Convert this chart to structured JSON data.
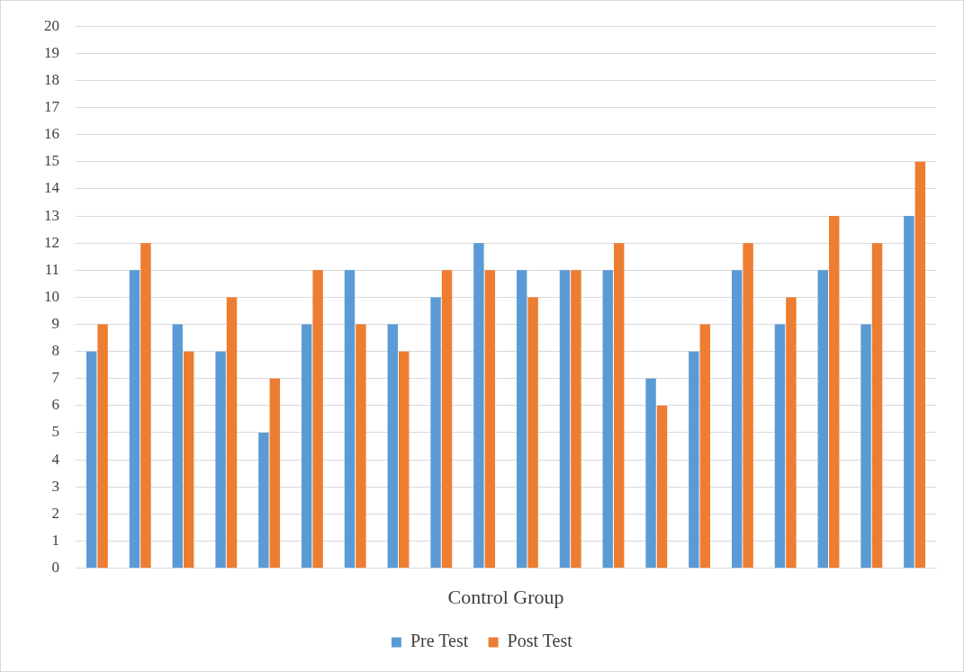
{
  "chart_data": {
    "type": "bar",
    "xlabel": "Control Group",
    "categories": [
      null,
      null,
      null,
      null,
      null,
      null,
      null,
      null,
      null,
      null,
      null,
      null,
      null,
      null,
      null,
      null,
      null,
      null,
      null,
      null
    ],
    "series": [
      {
        "name": "Pre Test",
        "color": "#5b9bd5",
        "values": [
          8,
          11,
          9,
          8,
          5,
          9,
          11,
          9,
          10,
          12,
          11,
          11,
          11,
          7,
          8,
          11,
          9,
          11,
          9,
          13
        ]
      },
      {
        "name": "Post Test",
        "color": "#ed7d31",
        "values": [
          9,
          12,
          8,
          10,
          7,
          11,
          9,
          8,
          11,
          11,
          10,
          11,
          12,
          6,
          9,
          12,
          10,
          13,
          12,
          15
        ]
      }
    ],
    "ylim": [
      0,
      20
    ],
    "yticks": [
      0,
      1,
      2,
      3,
      4,
      5,
      6,
      7,
      8,
      9,
      10,
      11,
      12,
      13,
      14,
      15,
      16,
      17,
      18,
      19,
      20
    ],
    "grid": "y",
    "legend": "bottom"
  }
}
